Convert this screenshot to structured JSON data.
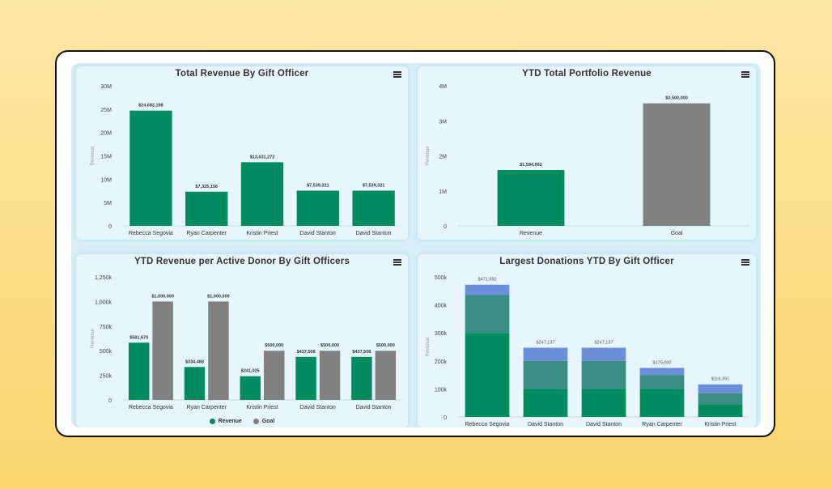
{
  "colors": {
    "revenue": "#008c5e",
    "goal": "#808080",
    "stack_top": "#6b8fd8",
    "stack_mid": "#3b8f82",
    "stack_bottom": "#008c5e"
  },
  "panels": {
    "p1": {
      "title": "Total Revenue By Gift Officer",
      "menu_icon": "hamburger-menu-icon"
    },
    "p2": {
      "title": "YTD Total Portfolio Revenue",
      "menu_icon": "hamburger-menu-icon"
    },
    "p3": {
      "title": "YTD Revenue per Active Donor By Gift Officers",
      "menu_icon": "hamburger-menu-icon"
    },
    "p4": {
      "title": "Largest Donations YTD By Gift Officer",
      "menu_icon": "hamburger-menu-icon"
    }
  },
  "legend": {
    "revenue": "Revenue",
    "goal": "Goal"
  },
  "chart_data": [
    {
      "id": "c1",
      "type": "bar",
      "title": "Total Revenue By Gift Officer",
      "ylabel": "Revenue",
      "ylim": [
        0,
        30000000
      ],
      "yticks": [
        "0",
        "5M",
        "10M",
        "15M",
        "20M",
        "25M",
        "30M"
      ],
      "categories": [
        "Rebecca Segovia",
        "Ryan Carpenter",
        "Kristin Priest",
        "David Stanton",
        "David Stanton"
      ],
      "values": [
        24682198,
        7325156,
        13631272,
        7539321,
        7539321
      ],
      "data_labels": [
        "$24,682,198",
        "$7,325,156",
        "$13,631,272",
        "$7,539,321",
        "$7,539,321"
      ],
      "grid": false
    },
    {
      "id": "c2",
      "type": "bar",
      "title": "YTD Total Portfolio Revenue",
      "ylabel": "Revenue",
      "ylim": [
        0,
        4000000
      ],
      "yticks": [
        "0",
        "1M",
        "2M",
        "3M",
        "4M"
      ],
      "categories": [
        "Revenue",
        "Goal"
      ],
      "values": [
        1594692,
        3500000
      ],
      "data_labels": [
        "$1,594,692",
        "$3,500,000"
      ],
      "grid": false
    },
    {
      "id": "c3",
      "type": "bar",
      "title": "YTD Revenue per Active Donor By Gift Officers",
      "ylabel": "Revenue",
      "ylim": [
        0,
        1250000
      ],
      "yticks": [
        "0",
        "250k",
        "500k",
        "750k",
        "1,000k",
        "1,250k"
      ],
      "categories": [
        "Rebecca Segovia",
        "Ryan Carpenter",
        "Kristin Priest",
        "David Stanton",
        "David Stanton"
      ],
      "series": [
        {
          "name": "Revenue",
          "values": [
            581670,
            334488,
            241025,
            437508,
            437508
          ],
          "data_labels": [
            "$581,670",
            "$334,488",
            "$241,025",
            "$437,508",
            "$437,508"
          ]
        },
        {
          "name": "Goal",
          "values": [
            1000000,
            1000000,
            500000,
            500000,
            500000
          ],
          "data_labels": [
            "$1,000,000",
            "$1,000,000",
            "$500,000",
            "$500,000",
            "$500,000"
          ]
        }
      ],
      "legend": "bottom-center",
      "grid": false
    },
    {
      "id": "c4",
      "type": "bar",
      "stacked": true,
      "title": "Largest Donations YTD By Gift Officer",
      "ylabel": "Revenue",
      "ylim": [
        0,
        500000
      ],
      "yticks": [
        "0",
        "100k",
        "200k",
        "300k",
        "400k",
        "500k"
      ],
      "categories": [
        "Rebecca Segovia",
        "David Stanton",
        "David Stanton",
        "Ryan Carpenter",
        "Kristin Priest"
      ],
      "series": [
        {
          "values": [
            300000,
            100000,
            100000,
            100000,
            45000
          ]
        },
        {
          "values": [
            135000,
            100000,
            100000,
            50000,
            40000
          ]
        },
        {
          "values": [
            36950,
            47137,
            47137,
            25000,
            31391
          ]
        }
      ],
      "data_labels": [
        "$471,950",
        "$247,137",
        "$247,137",
        "$175,000",
        "$116,391"
      ],
      "grid": false
    }
  ]
}
